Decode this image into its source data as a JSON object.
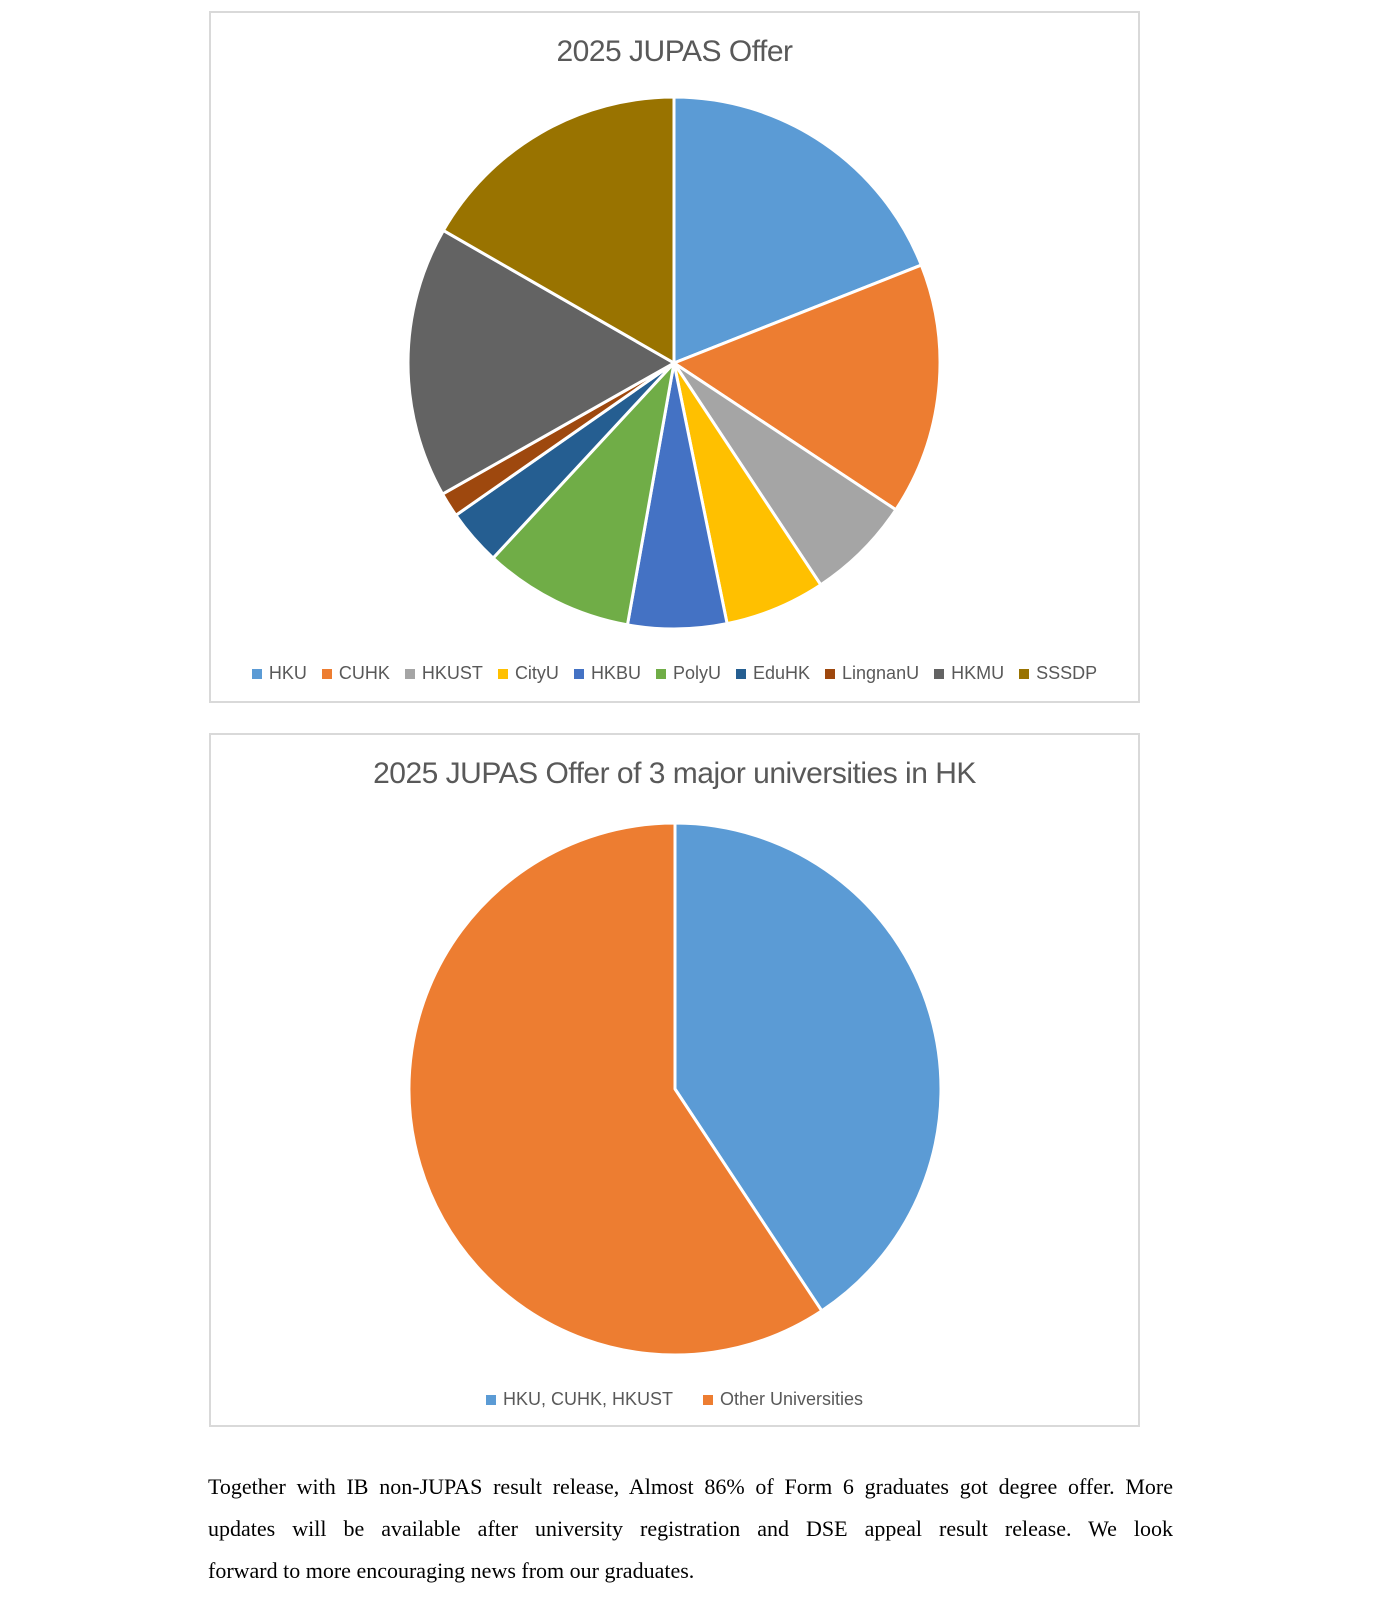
{
  "page": {
    "background_color": "#FFFFFF",
    "title_color": "#595959",
    "legend_text_color": "#595959",
    "box_border_color": "#D9D9D9",
    "paragraph_text_color": "#000000",
    "slice_border_color": "#FFFFFF"
  },
  "chart_data": [
    {
      "type": "pie",
      "title": "2025 JUPAS Offer",
      "start_angle_deg": 0,
      "direction": "clockwise",
      "legend_position": "bottom",
      "slices": [
        {
          "label": "HKU",
          "percent": 19.0,
          "color": "#5B9BD5"
        },
        {
          "label": "CUHK",
          "percent": 15.3,
          "color": "#ED7D31"
        },
        {
          "label": "HKUST",
          "percent": 6.4,
          "color": "#A5A5A5"
        },
        {
          "label": "CityU",
          "percent": 6.1,
          "color": "#FFC000"
        },
        {
          "label": "HKBU",
          "percent": 6.0,
          "color": "#4472C4"
        },
        {
          "label": "PolyU",
          "percent": 9.1,
          "color": "#70AD47"
        },
        {
          "label": "EduHK",
          "percent": 3.4,
          "color": "#255E91"
        },
        {
          "label": "LingnanU",
          "percent": 1.5,
          "color": "#9E480E"
        },
        {
          "label": "HKMU",
          "percent": 16.5,
          "color": "#636363"
        },
        {
          "label": "SSSDP",
          "percent": 16.7,
          "color": "#997300"
        }
      ]
    },
    {
      "type": "pie",
      "title": "2025 JUPAS Offer of 3 major universities in HK",
      "start_angle_deg": 0,
      "direction": "clockwise",
      "legend_position": "bottom",
      "slices": [
        {
          "label": "HKU, CUHK, HKUST",
          "percent": 40.7,
          "color": "#5B9BD5"
        },
        {
          "label": "Other Universities",
          "percent": 59.3,
          "color": "#ED7D31"
        }
      ]
    }
  ],
  "paragraph": {
    "lines": [
      "Together with IB non-JUPAS result release, Almost 86% of Form 6 graduates got degree offer. More",
      "updates will be available after university registration and DSE appeal result release. We look",
      "forward to more encouraging news from our graduates."
    ]
  }
}
